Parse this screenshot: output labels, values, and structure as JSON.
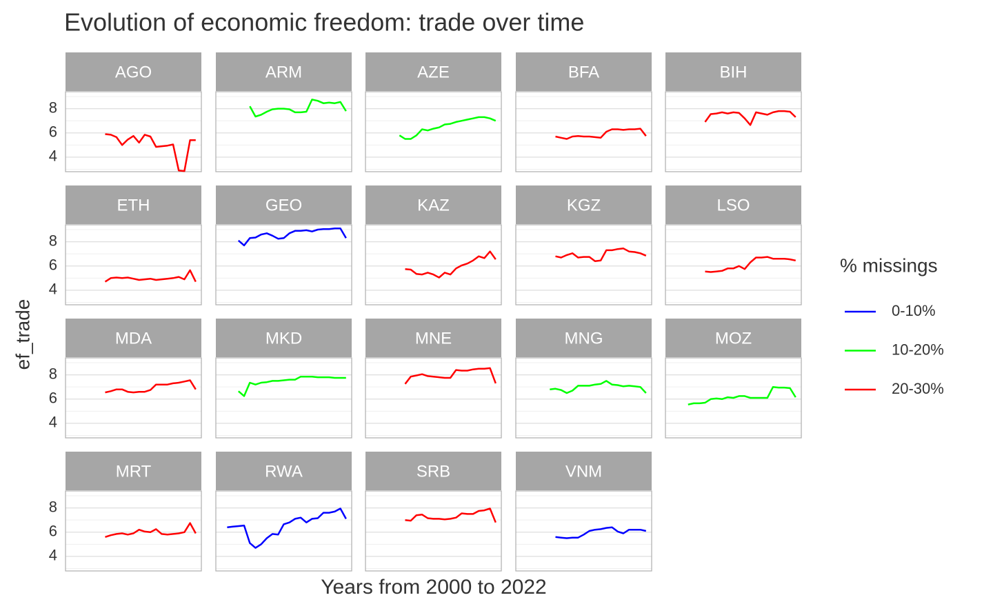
{
  "chart_data": {
    "type": "line",
    "title": "Evolution of economic freedom: trade over time",
    "x_label": "Years from 2000 to 2022",
    "y_label": "ef_trade",
    "legend_title": "% missings",
    "groups": [
      {
        "name": "0-10%",
        "color": "#0000ff"
      },
      {
        "name": "10-20%",
        "color": "#00ff00"
      },
      {
        "name": "20-30%",
        "color": "#ff0000"
      }
    ],
    "x": [
      2000,
      2001,
      2002,
      2003,
      2004,
      2005,
      2006,
      2007,
      2008,
      2009,
      2010,
      2011,
      2012,
      2013,
      2014,
      2015,
      2016,
      2017,
      2018,
      2019,
      2020,
      2021,
      2022
    ],
    "xlim": [
      1999,
      2023
    ],
    "ylim": [
      2.8,
      9.4
    ],
    "yticks": [
      4,
      6,
      8
    ],
    "yticks_minor": [
      3,
      5,
      7,
      9
    ],
    "grid": true,
    "series": [
      {
        "name": "AGO",
        "group": "20-30%",
        "values": [
          null,
          null,
          null,
          null,
          null,
          null,
          5.9,
          5.85,
          5.65,
          5.0,
          5.45,
          5.75,
          5.2,
          5.85,
          5.7,
          4.85,
          4.9,
          4.95,
          5.05,
          2.9,
          2.85,
          5.4,
          5.4
        ]
      },
      {
        "name": "ARM",
        "group": "10-20%",
        "values": [
          null,
          null,
          null,
          null,
          null,
          8.2,
          7.35,
          7.5,
          7.75,
          7.95,
          8.0,
          8.0,
          7.95,
          7.7,
          7.7,
          7.75,
          8.75,
          8.65,
          8.45,
          8.5,
          8.45,
          8.55,
          7.8
        ]
      },
      {
        "name": "AZE",
        "group": "10-20%",
        "values": [
          null,
          null,
          null,
          null,
          null,
          5.8,
          5.5,
          5.5,
          5.8,
          6.3,
          6.2,
          6.35,
          6.45,
          6.7,
          6.75,
          6.9,
          7.0,
          7.1,
          7.2,
          7.3,
          7.3,
          7.2,
          7.0
        ]
      },
      {
        "name": "BFA",
        "group": "20-30%",
        "values": [
          null,
          null,
          null,
          null,
          null,
          null,
          5.7,
          5.6,
          5.5,
          5.7,
          5.75,
          5.7,
          5.7,
          5.65,
          5.6,
          6.1,
          6.3,
          6.3,
          6.25,
          6.3,
          6.3,
          6.35,
          5.75
        ]
      },
      {
        "name": "BIH",
        "group": "20-30%",
        "values": [
          null,
          null,
          null,
          null,
          null,
          null,
          6.9,
          7.55,
          7.6,
          7.7,
          7.6,
          7.7,
          7.65,
          7.2,
          6.65,
          7.7,
          7.6,
          7.5,
          7.7,
          7.8,
          7.8,
          7.75,
          7.3
        ]
      },
      {
        "name": "ETH",
        "group": "20-30%",
        "values": [
          null,
          null,
          null,
          null,
          null,
          null,
          4.7,
          5.0,
          5.05,
          5.0,
          5.05,
          4.95,
          4.85,
          4.9,
          4.95,
          4.85,
          4.9,
          4.95,
          5.0,
          5.1,
          4.9,
          5.65,
          4.7
        ]
      },
      {
        "name": "GEO",
        "group": "0-10%",
        "values": [
          null,
          null,
          null,
          8.1,
          7.7,
          8.3,
          8.35,
          8.6,
          8.7,
          8.5,
          8.25,
          8.3,
          8.7,
          8.9,
          8.9,
          8.95,
          8.85,
          9.0,
          9.05,
          9.05,
          9.1,
          9.1,
          8.3
        ]
      },
      {
        "name": "KAZ",
        "group": "20-30%",
        "values": [
          null,
          null,
          null,
          null,
          null,
          null,
          5.75,
          5.7,
          5.35,
          5.3,
          5.45,
          5.3,
          5.05,
          5.45,
          5.3,
          5.8,
          6.05,
          6.2,
          6.45,
          6.8,
          6.65,
          7.2,
          6.55
        ]
      },
      {
        "name": "KGZ",
        "group": "20-30%",
        "values": [
          null,
          null,
          null,
          null,
          null,
          null,
          6.8,
          6.7,
          6.9,
          7.05,
          6.7,
          6.75,
          6.75,
          6.4,
          6.45,
          7.3,
          7.3,
          7.4,
          7.45,
          7.2,
          7.15,
          7.05,
          6.85
        ]
      },
      {
        "name": "LSO",
        "group": "20-30%",
        "values": [
          null,
          null,
          null,
          null,
          null,
          null,
          5.55,
          5.5,
          5.55,
          5.6,
          5.8,
          5.8,
          6.0,
          5.75,
          6.3,
          6.7,
          6.7,
          6.75,
          6.6,
          6.6,
          6.6,
          6.55,
          6.45
        ]
      },
      {
        "name": "MDA",
        "group": "20-30%",
        "values": [
          null,
          null,
          null,
          null,
          null,
          null,
          6.55,
          6.65,
          6.8,
          6.8,
          6.6,
          6.55,
          6.6,
          6.6,
          6.75,
          7.2,
          7.2,
          7.2,
          7.3,
          7.35,
          7.45,
          7.55,
          6.8
        ]
      },
      {
        "name": "MKD",
        "group": "10-20%",
        "values": [
          null,
          null,
          null,
          6.65,
          6.25,
          7.35,
          7.2,
          7.35,
          7.4,
          7.5,
          7.5,
          7.55,
          7.6,
          7.6,
          7.85,
          7.85,
          7.85,
          7.8,
          7.8,
          7.8,
          7.75,
          7.75,
          7.75
        ]
      },
      {
        "name": "MNE",
        "group": "20-30%",
        "values": [
          null,
          null,
          null,
          null,
          null,
          null,
          7.25,
          7.85,
          7.95,
          8.05,
          7.9,
          7.85,
          7.8,
          7.75,
          7.75,
          8.4,
          8.35,
          8.35,
          8.45,
          8.5,
          8.5,
          8.55,
          7.3
        ]
      },
      {
        "name": "MNG",
        "group": "10-20%",
        "values": [
          null,
          null,
          null,
          null,
          null,
          6.8,
          6.85,
          6.75,
          6.5,
          6.7,
          7.1,
          7.1,
          7.1,
          7.2,
          7.25,
          7.5,
          7.2,
          7.15,
          7.05,
          7.1,
          7.05,
          7.0,
          6.5
        ]
      },
      {
        "name": "MOZ",
        "group": "10-20%",
        "values": [
          null,
          null,
          null,
          5.55,
          5.65,
          5.65,
          5.7,
          6.0,
          6.05,
          6.0,
          6.15,
          6.1,
          6.25,
          6.25,
          6.1,
          6.1,
          6.1,
          6.1,
          7.0,
          6.95,
          6.95,
          6.9,
          6.15
        ]
      },
      {
        "name": "MRT",
        "group": "20-30%",
        "values": [
          null,
          null,
          null,
          null,
          null,
          null,
          5.6,
          5.75,
          5.85,
          5.9,
          5.8,
          5.9,
          6.2,
          6.05,
          6.0,
          6.25,
          5.85,
          5.8,
          5.85,
          5.9,
          6.0,
          6.75,
          5.9
        ]
      },
      {
        "name": "RWA",
        "group": "0-10%",
        "values": [
          null,
          6.4,
          6.45,
          6.5,
          6.55,
          5.1,
          4.7,
          5.0,
          5.5,
          5.85,
          5.8,
          6.65,
          6.8,
          7.1,
          7.2,
          6.8,
          7.1,
          7.15,
          7.6,
          7.6,
          7.7,
          7.95,
          7.1
        ]
      },
      {
        "name": "SRB",
        "group": "20-30%",
        "values": [
          null,
          null,
          null,
          null,
          null,
          null,
          7.0,
          6.95,
          7.4,
          7.45,
          7.15,
          7.1,
          7.1,
          7.05,
          7.1,
          7.2,
          7.55,
          7.5,
          7.5,
          7.75,
          7.8,
          7.95,
          6.8
        ]
      },
      {
        "name": "VNM",
        "group": "0-10%",
        "values": [
          null,
          null,
          null,
          null,
          null,
          null,
          5.6,
          5.55,
          5.5,
          5.55,
          5.55,
          5.8,
          6.1,
          6.2,
          6.25,
          6.35,
          6.4,
          6.05,
          5.9,
          6.2,
          6.2,
          6.2,
          6.1
        ]
      }
    ]
  }
}
